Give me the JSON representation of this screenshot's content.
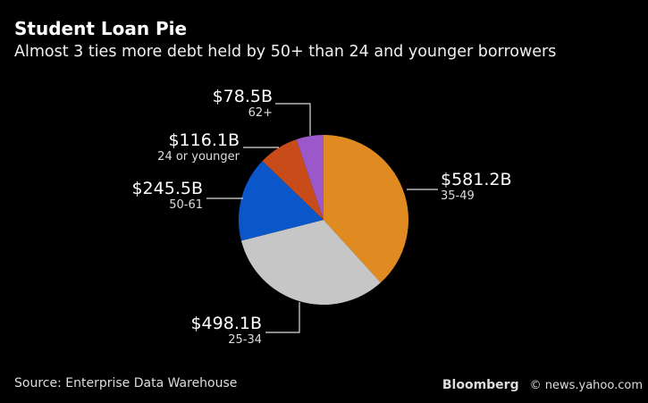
{
  "header": {
    "title": "Student Loan Pie",
    "subtitle": "Almost 3 ties more debt held by 50+ than 24 and younger borrowers"
  },
  "footer": {
    "source": "Source: Enterprise Data Warehouse",
    "logo": "Bloomberg",
    "watermark": "© news.yahoo.com"
  },
  "chart_data": {
    "type": "pie",
    "title": "Student Loan Pie",
    "subtitle": "Almost 3 ties more debt held by 50+ than 24 and younger borrowers",
    "unit": "$B",
    "slices": [
      {
        "category": "35-49",
        "value": 581.2,
        "label": "$581.2B",
        "color": "#e08a22"
      },
      {
        "category": "25-34",
        "value": 498.1,
        "label": "$498.1B",
        "color": "#c6c6c6"
      },
      {
        "category": "50-61",
        "value": 245.5,
        "label": "$245.5B",
        "color": "#0b56c9"
      },
      {
        "category": "24 or younger",
        "value": 116.1,
        "label": "$116.1B",
        "color": "#c84c1a"
      },
      {
        "category": "62+",
        "value": 78.5,
        "label": "$78.5B",
        "color": "#9a58c8"
      }
    ],
    "start": "top",
    "direction": "clockwise",
    "legend": "none"
  }
}
